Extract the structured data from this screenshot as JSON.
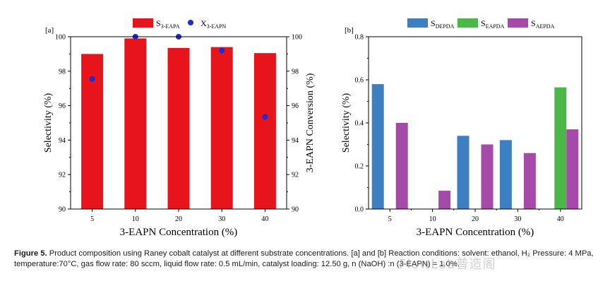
{
  "chart_data": [
    {
      "type": "bar",
      "panel_label": "[a]",
      "categories": [
        "5",
        "10",
        "20",
        "30",
        "40"
      ],
      "series": [
        {
          "name": "S3-EAPA",
          "name_main": "S",
          "name_sub": "3-EAPA",
          "kind": "bar",
          "values": [
            99.0,
            99.9,
            99.35,
            99.4,
            99.05
          ],
          "color": "#e8141b"
        },
        {
          "name": "X3-EAPN",
          "name_main": "X",
          "name_sub": "3-EAPN",
          "kind": "scatter",
          "values": [
            97.55,
            100.0,
            100.0,
            99.2,
            95.35
          ],
          "color": "#1f2bd6"
        }
      ],
      "xlabel": "3-EAPN Concentration (%)",
      "ylabel": "Selectivity (%)",
      "y2label": "3-EAPN Conversion (%)",
      "ylim": [
        90,
        100
      ],
      "yticks": [
        "90",
        "92",
        "94",
        "96",
        "98",
        "100"
      ],
      "y2ticks": [
        "90",
        "92",
        "94",
        "96",
        "98",
        "100"
      ]
    },
    {
      "type": "bar",
      "panel_label": "[b]",
      "categories": [
        "5",
        "10",
        "20",
        "30",
        "40"
      ],
      "series": [
        {
          "name": "SDEPDA",
          "name_main": "S",
          "name_sub": "DEPDA",
          "values": [
            0.58,
            0.0,
            0.34,
            0.32,
            0.0
          ],
          "color": "#3e7fc1"
        },
        {
          "name": "SEAPDA",
          "name_main": "S",
          "name_sub": "EAPDA",
          "values": [
            0.0,
            0.0,
            0.0,
            0.0,
            0.565
          ],
          "color": "#4bb748"
        },
        {
          "name": "SAEPDA",
          "name_main": "S",
          "name_sub": "AEPDA",
          "values": [
            0.4,
            0.085,
            0.3,
            0.26,
            0.37
          ],
          "color": "#a54aa8"
        }
      ],
      "xlabel": "3-EAPN Concentration (%)",
      "ylabel": "Selectivity (%)",
      "ylim": [
        0.0,
        0.8
      ],
      "yticks": [
        "0.0",
        "0.2",
        "0.4",
        "0.6",
        "0.8"
      ]
    }
  ],
  "caption": {
    "label": "Figure 5.",
    "text": "Product composition using Raney cobalt catalyst at different substrate concentrations. [a] and [b] Reaction conditions: solvent: ethanol, H₂ Pressure: 4 MPa, temperature:70°C, gas flow rate: 80 sccm, liquid flow rate: 0.5 mL/min, catalyst loading: 12.50 g, n (NaOH) :n (3-EAPN) = 1.0%."
  },
  "watermark": "FlowLab普造阁"
}
